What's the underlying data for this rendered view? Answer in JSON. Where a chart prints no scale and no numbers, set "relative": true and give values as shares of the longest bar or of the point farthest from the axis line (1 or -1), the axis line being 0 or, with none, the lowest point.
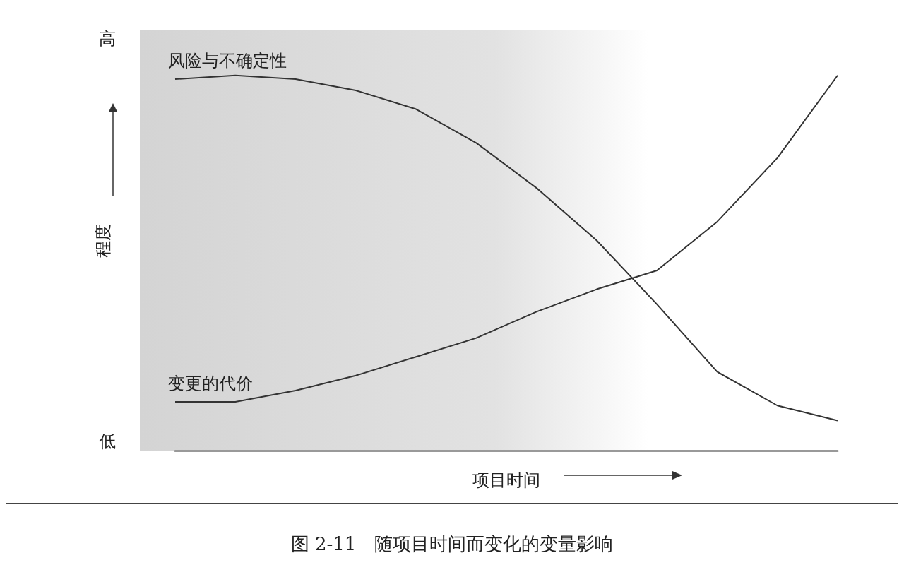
{
  "chart_data": {
    "type": "line",
    "title": "图 2-11　随项目时间而变化的变量影响",
    "xlabel": "项目时间",
    "ylabel": "程度",
    "relative": true,
    "annotations": [
      "高",
      "低"
    ],
    "grid": false,
    "marker": "none",
    "categories": [
      null,
      null,
      null,
      null,
      null,
      null,
      null,
      null,
      null,
      null,
      null,
      null
    ],
    "series": [
      {
        "name": "风险与不确定性",
        "color": "#333333",
        "values": [
          0.99,
          1,
          0.99,
          0.96,
          0.91,
          0.82,
          0.7,
          0.56,
          0.39,
          0.21,
          0.12,
          0.08
        ]
      },
      {
        "name": "变更的代价",
        "color": "#333333",
        "values": [
          0.13,
          0.13,
          0.16,
          0.2,
          0.25,
          0.3,
          0.37,
          0.43,
          0.48,
          0.61,
          0.78,
          1
        ]
      }
    ]
  }
}
